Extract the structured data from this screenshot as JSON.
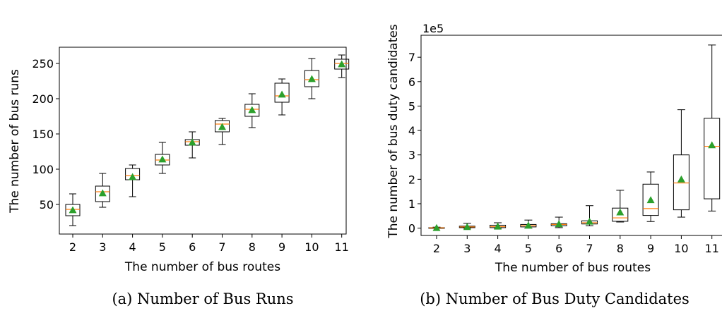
{
  "chart_data": [
    {
      "type": "box",
      "caption": "(a) Number of Bus Runs",
      "xlabel": "The number of bus routes",
      "ylabel": "The number of bus runs",
      "categories": [
        "2",
        "3",
        "4",
        "5",
        "6",
        "7",
        "8",
        "9",
        "10",
        "11"
      ],
      "y_ticks": [
        50,
        100,
        150,
        200,
        250
      ],
      "ylim": [
        8,
        273
      ],
      "boxes": [
        {
          "min": 20,
          "q1": 34,
          "median": 43,
          "q3": 50,
          "max": 65,
          "mean": 42
        },
        {
          "min": 46,
          "q1": 54,
          "median": 68,
          "q3": 76,
          "max": 94,
          "mean": 66
        },
        {
          "min": 61,
          "q1": 85,
          "median": 91,
          "q3": 101,
          "max": 106,
          "mean": 89
        },
        {
          "min": 94,
          "q1": 106,
          "median": 113,
          "q3": 121,
          "max": 138,
          "mean": 114
        },
        {
          "min": 116,
          "q1": 134,
          "median": 139,
          "q3": 142,
          "max": 153,
          "mean": 138
        },
        {
          "min": 135,
          "q1": 153,
          "median": 164,
          "q3": 169,
          "max": 172,
          "mean": 160
        },
        {
          "min": 159,
          "q1": 175,
          "median": 185,
          "q3": 192,
          "max": 207,
          "mean": 184
        },
        {
          "min": 177,
          "q1": 195,
          "median": 204,
          "q3": 222,
          "max": 228,
          "mean": 206
        },
        {
          "min": 200,
          "q1": 217,
          "median": 227,
          "q3": 240,
          "max": 257,
          "mean": 228
        },
        {
          "min": 230,
          "q1": 242,
          "median": 250,
          "q3": 256,
          "max": 262,
          "mean": 249
        }
      ],
      "colors": {
        "box": "#000000",
        "median": "#ff7f0e",
        "mean": "#2ca02c"
      }
    },
    {
      "type": "box",
      "caption": "(b) Number of Bus Duty Candidates",
      "xlabel": "The number of bus routes",
      "ylabel": "The number of bus duty candidates",
      "offset_text": "1e5",
      "categories": [
        "2",
        "3",
        "4",
        "5",
        "6",
        "7",
        "8",
        "9",
        "10",
        "11"
      ],
      "y_ticks": [
        0,
        1,
        2,
        3,
        4,
        5,
        6,
        7
      ],
      "ylim": [
        -0.3,
        7.9
      ],
      "boxes": [
        {
          "min": 0,
          "q1": 0,
          "median": 0.01,
          "q3": 0.02,
          "max": 0.04,
          "mean": 0.01
        },
        {
          "min": 0,
          "q1": 0.02,
          "median": 0.05,
          "q3": 0.08,
          "max": 0.2,
          "mean": 0.05
        },
        {
          "min": 0,
          "q1": 0.02,
          "median": 0.06,
          "q3": 0.12,
          "max": 0.22,
          "mean": 0.07
        },
        {
          "min": 0,
          "q1": 0.05,
          "median": 0.1,
          "q3": 0.15,
          "max": 0.33,
          "mean": 0.11
        },
        {
          "min": 0.02,
          "q1": 0.1,
          "median": 0.15,
          "q3": 0.18,
          "max": 0.45,
          "mean": 0.17
        },
        {
          "min": 0.1,
          "q1": 0.17,
          "median": 0.22,
          "q3": 0.3,
          "max": 0.92,
          "mean": 0.27
        },
        {
          "min": 0.25,
          "q1": 0.28,
          "median": 0.42,
          "q3": 0.82,
          "max": 1.55,
          "mean": 0.65
        },
        {
          "min": 0.27,
          "q1": 0.52,
          "median": 0.8,
          "q3": 1.8,
          "max": 2.3,
          "mean": 1.15
        },
        {
          "min": 0.45,
          "q1": 0.75,
          "median": 1.85,
          "q3": 3.0,
          "max": 4.85,
          "mean": 2.0
        },
        {
          "min": 0.7,
          "q1": 1.2,
          "median": 3.35,
          "q3": 4.5,
          "max": 7.5,
          "mean": 3.4
        }
      ],
      "colors": {
        "box": "#000000",
        "median": "#ff7f0e",
        "mean": "#2ca02c"
      }
    }
  ]
}
